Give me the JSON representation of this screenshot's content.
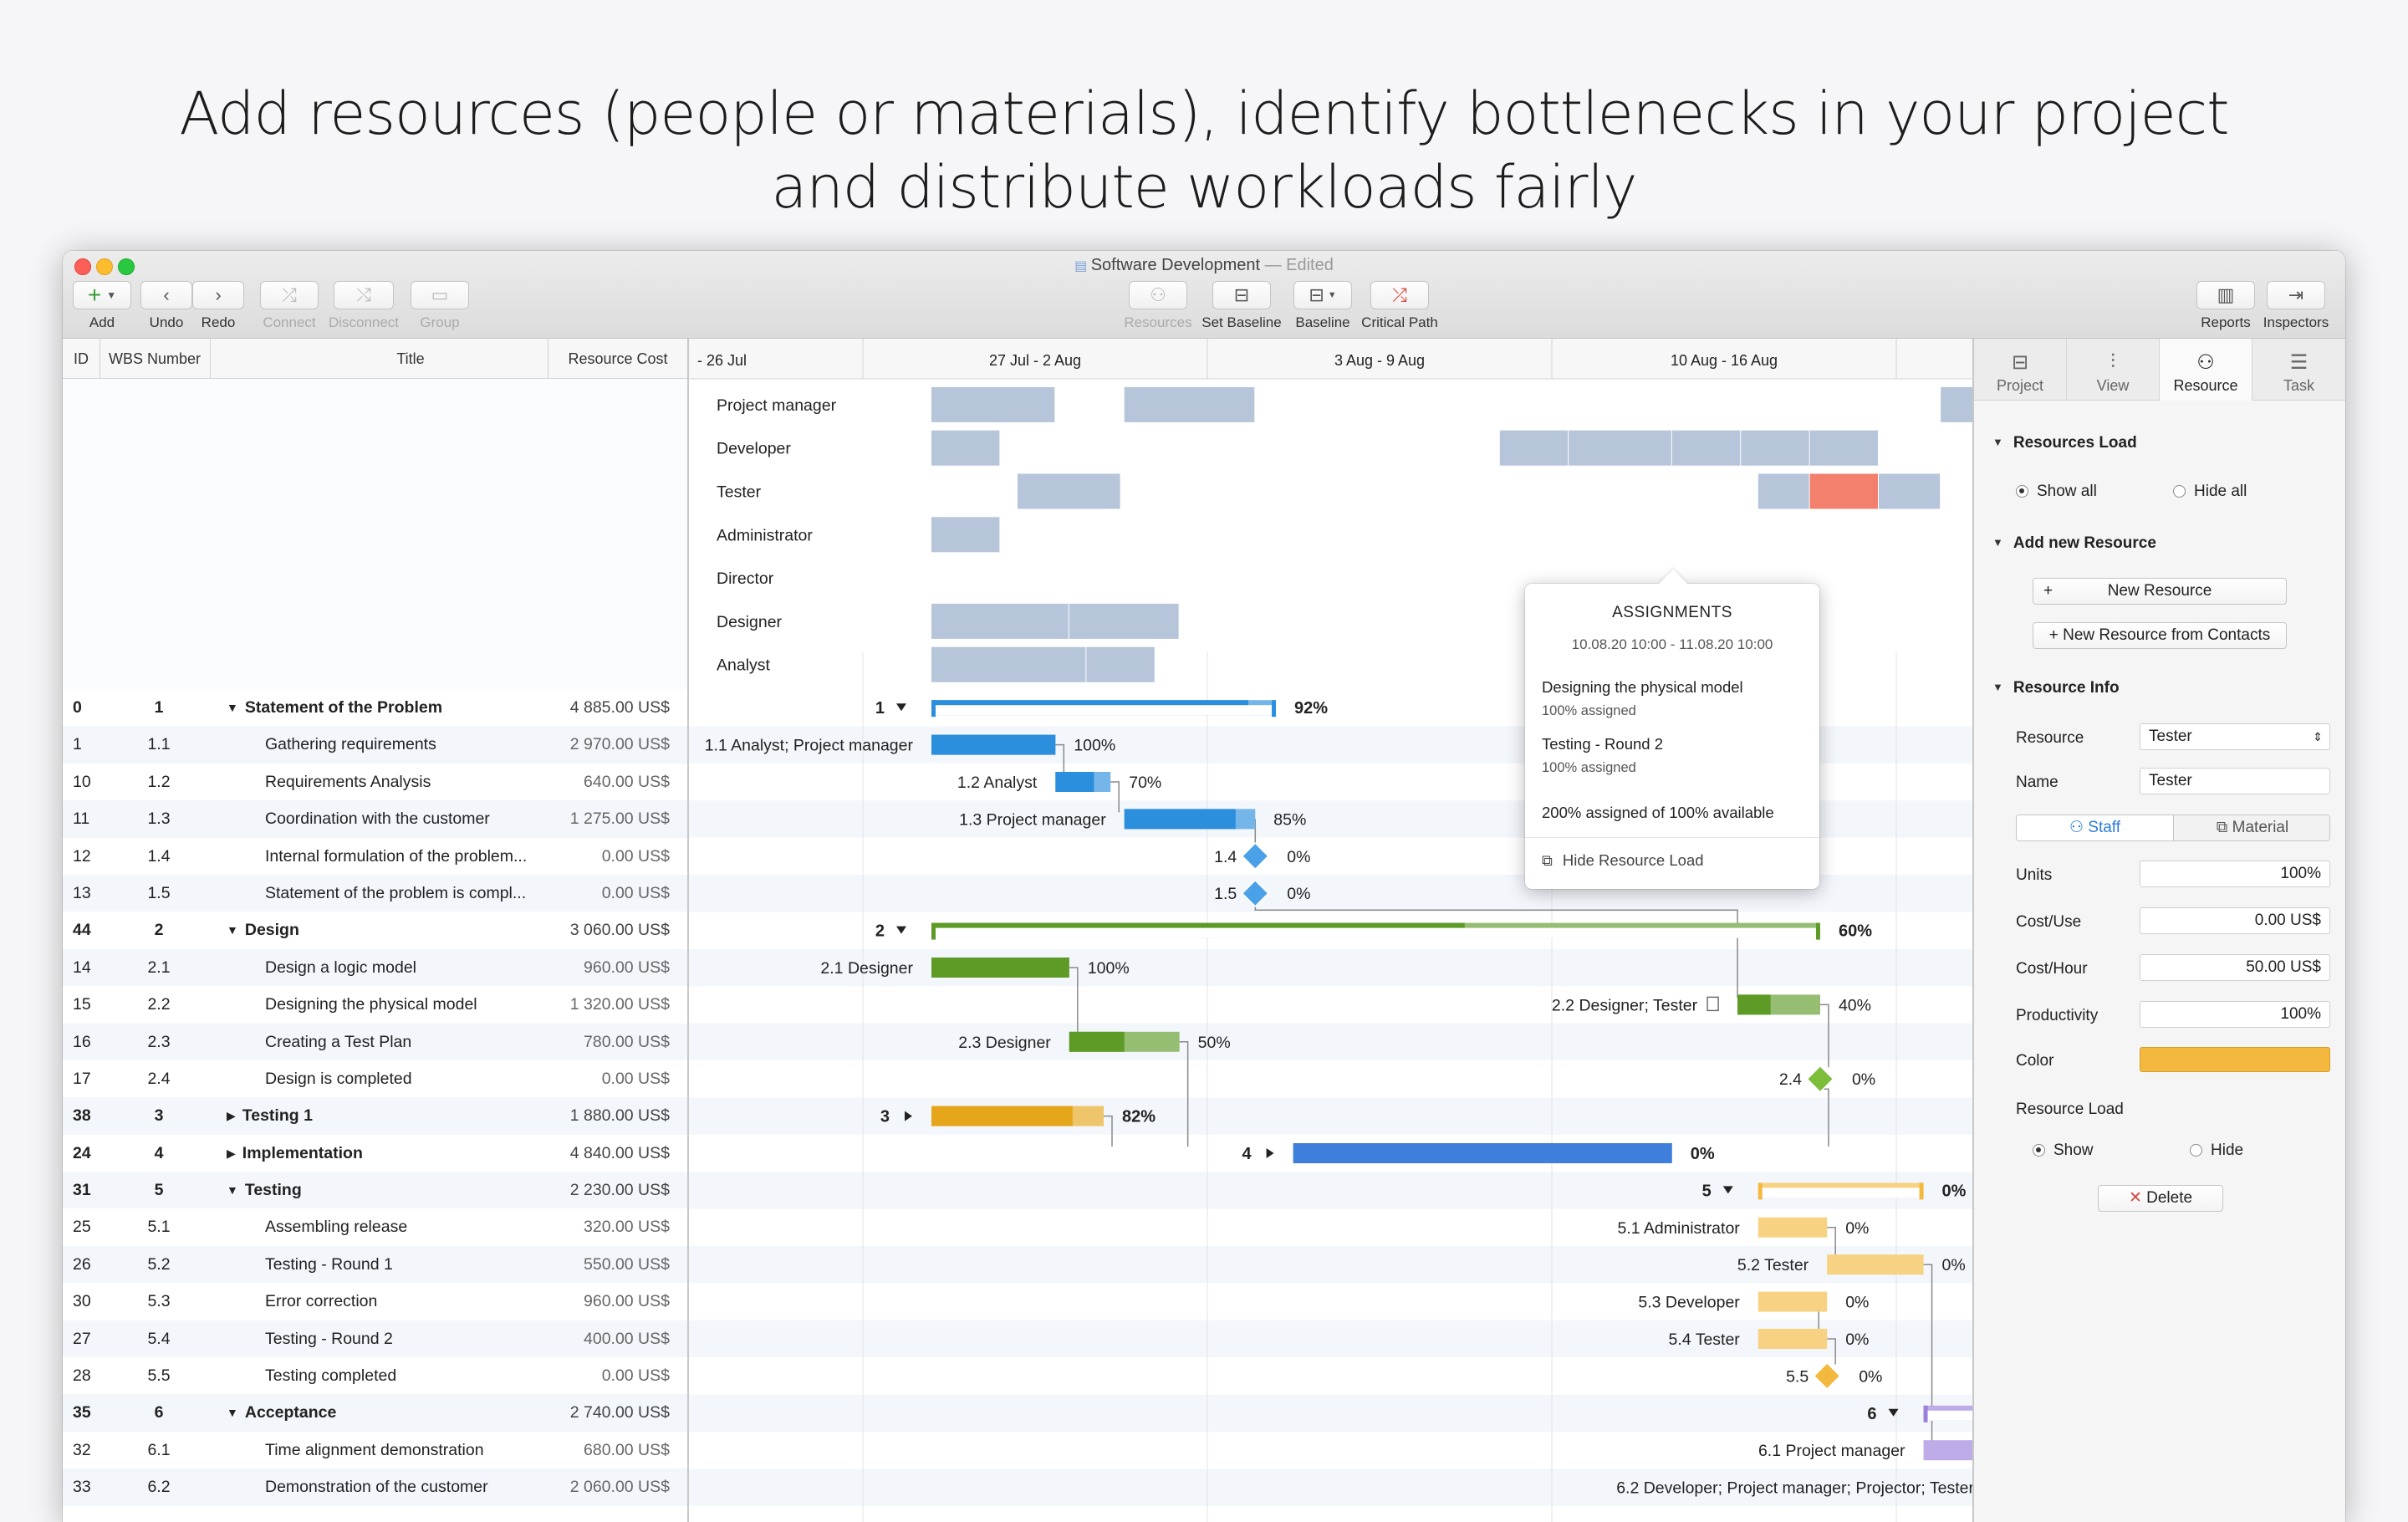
{
  "hero": {
    "line1": "Add resources (people or materials), identify bottlenecks in your project",
    "line2": "and distribute workloads fairly"
  },
  "window": {
    "title": "Software Development",
    "title_suffix": " — Edited"
  },
  "toolbar": {
    "add": "Add",
    "undo": "Undo",
    "redo": "Redo",
    "connect": "Connect",
    "disconnect": "Disconnect",
    "group": "Group",
    "resources": "Resources",
    "set_baseline": "Set Baseline",
    "baseline": "Baseline",
    "critical_path": "Critical Path",
    "reports": "Reports",
    "inspectors": "Inspectors"
  },
  "columns": {
    "id": "ID",
    "wbs": "WBS Number",
    "title": "Title",
    "cost": "Resource Cost"
  },
  "timeline": {
    "weeks": [
      "- 26 Jul",
      "27 Jul - 2 Aug",
      "3 Aug - 9 Aug",
      "10 Aug - 16 Aug"
    ]
  },
  "resource_load": [
    {
      "name": "Project manager",
      "spans": [
        [
          1,
          4.6
        ],
        [
          6.6,
          10.4
        ],
        [
          30.3,
          32.3
        ],
        [
          32.3,
          34.3
        ]
      ]
    },
    {
      "name": "Developer",
      "spans": [
        [
          1,
          3
        ],
        [
          17.5,
          19.5
        ],
        [
          19.5,
          22.5
        ],
        [
          22.5,
          24.5
        ],
        [
          24.5,
          26.5
        ],
        [
          26.5,
          28.5
        ],
        [
          32.3,
          34.3
        ]
      ]
    },
    {
      "name": "Tester",
      "spans": [
        [
          3.5,
          6.5
        ],
        [
          25,
          26.5
        ],
        [
          28.5,
          30.3
        ],
        [
          32.3,
          34.3
        ]
      ],
      "over": [
        [
          26.5,
          28.5
        ]
      ]
    },
    {
      "name": "Administrator",
      "spans": [
        [
          1,
          3
        ]
      ]
    },
    {
      "name": "Director",
      "spans": []
    },
    {
      "name": "Designer",
      "spans": [
        [
          1,
          5
        ],
        [
          5,
          8.2
        ],
        [
          21,
          23
        ]
      ]
    },
    {
      "name": "Analyst",
      "spans": [
        [
          1,
          5.5
        ],
        [
          5.5,
          7.5
        ]
      ]
    }
  ],
  "tasks": [
    {
      "id": "0",
      "wbs": "1",
      "title": "Statement of the Problem",
      "cost": "4 885.00 US$",
      "level": 0,
      "group": true,
      "open": true
    },
    {
      "id": "1",
      "wbs": "1.1",
      "title": "Gathering requirements",
      "cost": "2 970.00 US$",
      "level": 1
    },
    {
      "id": "10",
      "wbs": "1.2",
      "title": "Requirements Analysis",
      "cost": "640.00 US$",
      "level": 1
    },
    {
      "id": "11",
      "wbs": "1.3",
      "title": "Coordination with the customer",
      "cost": "1 275.00 US$",
      "level": 1
    },
    {
      "id": "12",
      "wbs": "1.4",
      "title": "Internal formulation of the problem...",
      "cost": "0.00 US$",
      "level": 1
    },
    {
      "id": "13",
      "wbs": "1.5",
      "title": "Statement of the problem is compl...",
      "cost": "0.00 US$",
      "level": 1
    },
    {
      "id": "44",
      "wbs": "2",
      "title": "Design",
      "cost": "3 060.00 US$",
      "level": 0,
      "group": true,
      "open": true
    },
    {
      "id": "14",
      "wbs": "2.1",
      "title": "Design a logic model",
      "cost": "960.00 US$",
      "level": 1
    },
    {
      "id": "15",
      "wbs": "2.2",
      "title": "Designing the physical model",
      "cost": "1 320.00 US$",
      "level": 1
    },
    {
      "id": "16",
      "wbs": "2.3",
      "title": "Creating a Test Plan",
      "cost": "780.00 US$",
      "level": 1
    },
    {
      "id": "17",
      "wbs": "2.4",
      "title": "Design is completed",
      "cost": "0.00 US$",
      "level": 1
    },
    {
      "id": "38",
      "wbs": "3",
      "title": "Testing 1",
      "cost": "1 880.00 US$",
      "level": 0,
      "group": true,
      "open": false
    },
    {
      "id": "24",
      "wbs": "4",
      "title": "Implementation",
      "cost": "4 840.00 US$",
      "level": 0,
      "group": true,
      "open": false
    },
    {
      "id": "31",
      "wbs": "5",
      "title": "Testing",
      "cost": "2 230.00 US$",
      "level": 0,
      "group": true,
      "open": true
    },
    {
      "id": "25",
      "wbs": "5.1",
      "title": "Assembling release",
      "cost": "320.00 US$",
      "level": 1
    },
    {
      "id": "26",
      "wbs": "5.2",
      "title": "Testing - Round 1",
      "cost": "550.00 US$",
      "level": 1
    },
    {
      "id": "30",
      "wbs": "5.3",
      "title": "Error correction",
      "cost": "960.00 US$",
      "level": 1
    },
    {
      "id": "27",
      "wbs": "5.4",
      "title": "Testing - Round 2",
      "cost": "400.00 US$",
      "level": 1
    },
    {
      "id": "28",
      "wbs": "5.5",
      "title": "Testing completed",
      "cost": "0.00 US$",
      "level": 1
    },
    {
      "id": "35",
      "wbs": "6",
      "title": "Acceptance",
      "cost": "2 740.00 US$",
      "level": 0,
      "group": true,
      "open": true
    },
    {
      "id": "32",
      "wbs": "6.1",
      "title": "Time alignment demonstration",
      "cost": "680.00 US$",
      "level": 1
    },
    {
      "id": "33",
      "wbs": "6.2",
      "title": "Demonstration of the customer",
      "cost": "2 060.00 US$",
      "level": 1
    }
  ],
  "bars": [
    {
      "type": "summary",
      "start": 1,
      "end": 11,
      "progress": 0.92,
      "color": "#2b8fde",
      "label": "1",
      "pct": "92%"
    },
    {
      "type": "task",
      "start": 1,
      "end": 4.6,
      "progress": 1.0,
      "color": "#2b8fde",
      "label": "1.1   Analyst; Project manager",
      "pct": "100%"
    },
    {
      "type": "task",
      "start": 4.6,
      "end": 6.2,
      "progress": 0.7,
      "color": "#2b8fde",
      "label": "1.2   Analyst",
      "pct": "70%"
    },
    {
      "type": "task",
      "start": 6.6,
      "end": 10.4,
      "progress": 0.85,
      "color": "#2b8fde",
      "label": "1.3   Project manager",
      "pct": "85%"
    },
    {
      "type": "milestone",
      "start": 10.4,
      "color": "#4aa1e8",
      "label": "1.4",
      "pct": "0%"
    },
    {
      "type": "milestone",
      "start": 10.4,
      "color": "#4aa1e8",
      "label": "1.5",
      "pct": "0%"
    },
    {
      "type": "summary",
      "start": 1,
      "end": 26.8,
      "progress": 0.6,
      "color": "#5d9b26",
      "label": "2",
      "pct": "60%"
    },
    {
      "type": "task",
      "start": 1,
      "end": 5,
      "progress": 1.0,
      "color": "#5d9b26",
      "label": "2.1   Designer",
      "pct": "100%"
    },
    {
      "type": "task",
      "start": 24.4,
      "end": 26.8,
      "progress": 0.4,
      "color": "#5d9b26",
      "label": "2.2   Designer; Tester",
      "pct": "40%",
      "note": true
    },
    {
      "type": "task",
      "start": 5,
      "end": 8.2,
      "progress": 0.5,
      "color": "#5d9b26",
      "label": "2.3   Designer",
      "pct": "50%"
    },
    {
      "type": "milestone",
      "start": 26.8,
      "color": "#7cbd3a",
      "label": "2.4",
      "pct": "0%"
    },
    {
      "type": "summary-closed",
      "start": 1,
      "end": 6,
      "progress": 0.82,
      "color": "#e6a61b",
      "label": "3",
      "pct": "82%"
    },
    {
      "type": "summary-closed",
      "start": 11.5,
      "end": 22.5,
      "progress": 1.0,
      "color": "#3f7fdc",
      "label": "4",
      "pct": "0%"
    },
    {
      "type": "summary",
      "start": 25,
      "end": 29.8,
      "progress": 0,
      "color": "#f3b93f",
      "label": "5",
      "pct": "0%"
    },
    {
      "type": "task",
      "start": 25,
      "end": 27,
      "progress": 0,
      "color": "#f3b93f",
      "label": "5.1   Administrator",
      "pct": "0%"
    },
    {
      "type": "task",
      "start": 27,
      "end": 29.8,
      "progress": 0,
      "color": "#f3b93f",
      "label": "5.2   Tester",
      "pct": "0%"
    },
    {
      "type": "task",
      "start": 25,
      "end": 27,
      "progress": 0,
      "color": "#f3b93f",
      "label": "5.3   Developer",
      "pct": "0%"
    },
    {
      "type": "task",
      "start": 25,
      "end": 27,
      "progress": 0,
      "color": "#f3b93f",
      "label": "5.4   Tester",
      "pct": "0%"
    },
    {
      "type": "milestone",
      "start": 27,
      "color": "#f3b93f",
      "label": "5.5",
      "pct": "0%"
    },
    {
      "type": "summary",
      "start": 29.8,
      "end": 33.8,
      "progress": 0,
      "color": "#9b7fdc",
      "label": "6",
      "pct": "0%"
    },
    {
      "type": "task",
      "start": 29.8,
      "end": 31.8,
      "progress": 0,
      "color": "#9b7fdc",
      "label": "6.1   Project manager",
      "pct": "0%"
    },
    {
      "type": "task",
      "start": 31.8,
      "end": 33.8,
      "progress": 0,
      "color": "#9b7fdc",
      "label": "6.2   Developer; Project manager; Projector; Tester",
      "pct": "0%"
    }
  ],
  "popover": {
    "title": "ASSIGNMENTS",
    "range": "10.08.20 10:00 - 11.08.20 10:00",
    "items": [
      {
        "name": "Designing the physical model",
        "assigned": "100% assigned"
      },
      {
        "name": "Testing - Round 2",
        "assigned": "100% assigned"
      }
    ],
    "summary": "200% assigned of 100% available",
    "hide": "Hide Resource Load"
  },
  "inspector": {
    "tabs": [
      "Project",
      "View",
      "Resource",
      "Task"
    ],
    "resources_load": "Resources Load",
    "show_all": "Show all",
    "hide_all": "Hide all",
    "add_new_resource": "Add new Resource",
    "new_resource": "New Resource",
    "new_from_contacts": "New Resource from Contacts",
    "resource_info": "Resource Info",
    "resource_label": "Resource",
    "resource_value": "Tester",
    "name_label": "Name",
    "name_value": "Tester",
    "staff": "Staff",
    "material": "Material",
    "units_label": "Units",
    "units_value": "100%",
    "costuse_label": "Cost/Use",
    "costuse_value": "0.00 US$",
    "costhour_label": "Cost/Hour",
    "costhour_value": "50.00 US$",
    "productivity_label": "Productivity",
    "productivity_value": "100%",
    "color_label": "Color",
    "color_value": "#f3b83d",
    "resource_load_label": "Resource Load",
    "show": "Show",
    "hide": "Hide",
    "delete": "Delete"
  }
}
